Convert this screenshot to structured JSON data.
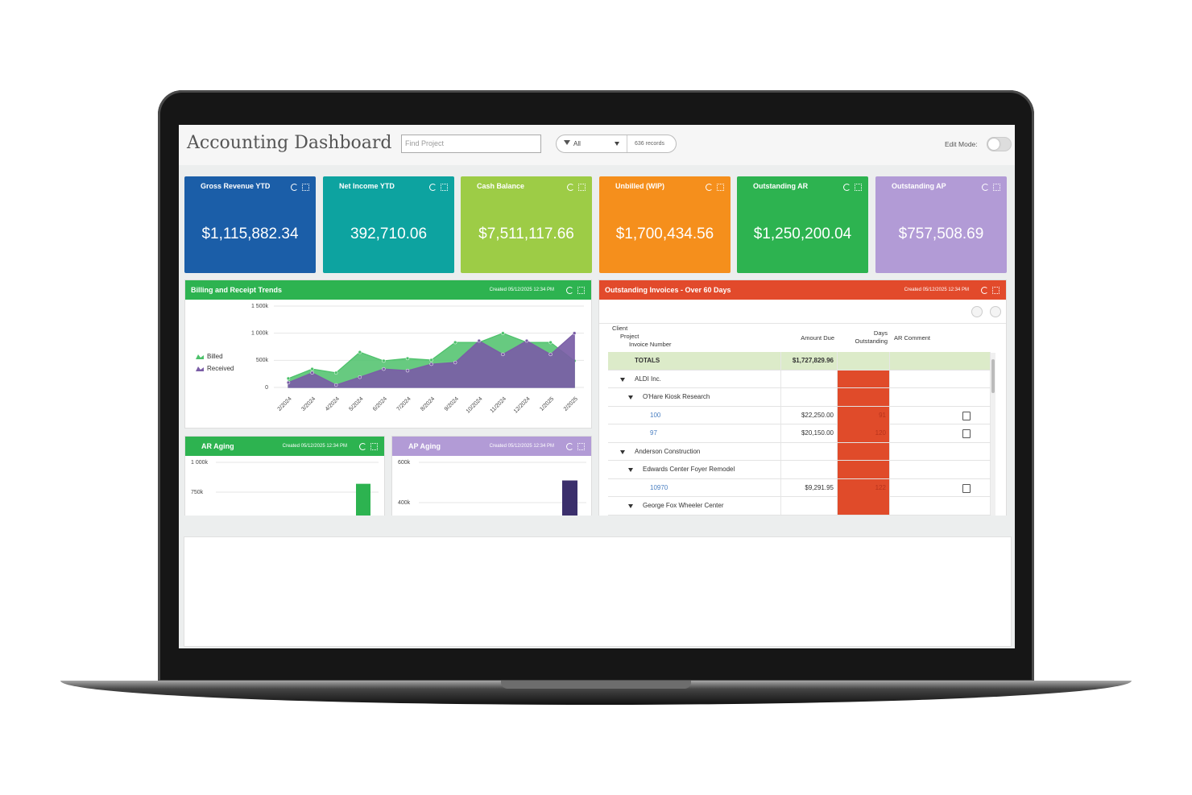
{
  "header": {
    "title": "Accounting Dashboard",
    "search_placeholder": "Find Project",
    "filter": "All",
    "records": "636 records",
    "edit_mode": "Edit Mode:"
  },
  "kpis": [
    {
      "title": "Gross Revenue YTD",
      "value": "$1,115,882.34",
      "color": "#1b5ea8"
    },
    {
      "title": "Net Income YTD",
      "value": "392,710.06",
      "color": "#0da3a0"
    },
    {
      "title": "Cash Balance",
      "value": "$7,511,117.66",
      "color": "#9dcc46"
    },
    {
      "title": "Unbilled (WIP)",
      "value": "$1,700,434.56",
      "color": "#f58f1c"
    },
    {
      "title": "Outstanding AR",
      "value": "$1,250,200.04",
      "color": "#2db350"
    },
    {
      "title": "Outstanding AP",
      "value": "$757,508.69",
      "color": "#b29bd6"
    }
  ],
  "chart_data": [
    {
      "type": "area",
      "title": "Billing and Receipt Trends",
      "subtitle": "Created 05/12/2025 12:34 PM",
      "categories": [
        "2/2024",
        "3/2024",
        "4/2024",
        "5/2024",
        "6/2024",
        "7/2024",
        "8/2024",
        "9/2024",
        "10/2024",
        "11/2024",
        "12/2024",
        "1/2025",
        "2/2025"
      ],
      "series": [
        {
          "name": "Billed",
          "color": "#4cc16a",
          "values": [
            165000,
            340000,
            270000,
            650000,
            490000,
            535000,
            505000,
            830000,
            830000,
            1000000,
            830000,
            830000,
            490000
          ]
        },
        {
          "name": "Received",
          "color": "#7a5da6",
          "values": [
            90000,
            270000,
            45000,
            190000,
            340000,
            310000,
            430000,
            460000,
            860000,
            610000,
            860000,
            610000,
            1000000
          ]
        }
      ],
      "ylim": [
        0,
        1500000
      ],
      "yticks": [
        0,
        {
          "value": 500000,
          "label": "500k"
        },
        {
          "value": 1000000,
          "label": "1 000k"
        },
        {
          "value": 1500000,
          "label": "1 500k"
        }
      ],
      "grid": true
    },
    {
      "type": "bar",
      "title": "AR Aging",
      "subtitle": "Created 05/12/2025 12:34 PM",
      "categories": [
        null
      ],
      "values": [
        820000
      ],
      "color": "#2db350",
      "ylim": [
        0,
        1000000
      ],
      "yticks": [
        {
          "value": 1000000,
          "label": "1 000k"
        },
        {
          "value": 750000,
          "label": "750k"
        }
      ],
      "grid": true
    },
    {
      "type": "bar",
      "title": "AP Aging",
      "subtitle": "Created 05/12/2025 12:34 PM",
      "categories": [
        null
      ],
      "values": [
        510000
      ],
      "color": "#3b2f6c",
      "ylim": [
        0,
        600000
      ],
      "yticks": [
        {
          "value": 600000,
          "label": "600k"
        },
        {
          "value": 400000,
          "label": "400k"
        }
      ],
      "grid": true
    }
  ],
  "invoices": {
    "title": "Outstanding Invoices - Over 60 Days",
    "subtitle": "Created 05/12/2025 12:34 PM",
    "columns": {
      "client": "Client",
      "project": "Project",
      "invoice": "Invoice Number",
      "amount": "Amount Due",
      "days": "Days Outstanding",
      "comment": "AR Comment"
    },
    "totals": {
      "label": "TOTALS",
      "amount_due": "$1,727,829.96"
    },
    "clients": [
      {
        "name": "ALDI Inc.",
        "projects": [
          {
            "name": "O'Hare Kiosk Research",
            "invoices": [
              {
                "number": "100",
                "amount_due": "$22,250.00",
                "days": 91
              },
              {
                "number": "97",
                "amount_due": "$20,150.00",
                "days": 120
              }
            ]
          }
        ]
      },
      {
        "name": "Anderson Construction",
        "projects": [
          {
            "name": "Edwards Center Foyer Remodel",
            "invoices": [
              {
                "number": "10970",
                "amount_due": "$9,291.95",
                "days": 122
              }
            ]
          },
          {
            "name": "George Fox Wheeler Center",
            "invoices": []
          }
        ]
      }
    ]
  }
}
